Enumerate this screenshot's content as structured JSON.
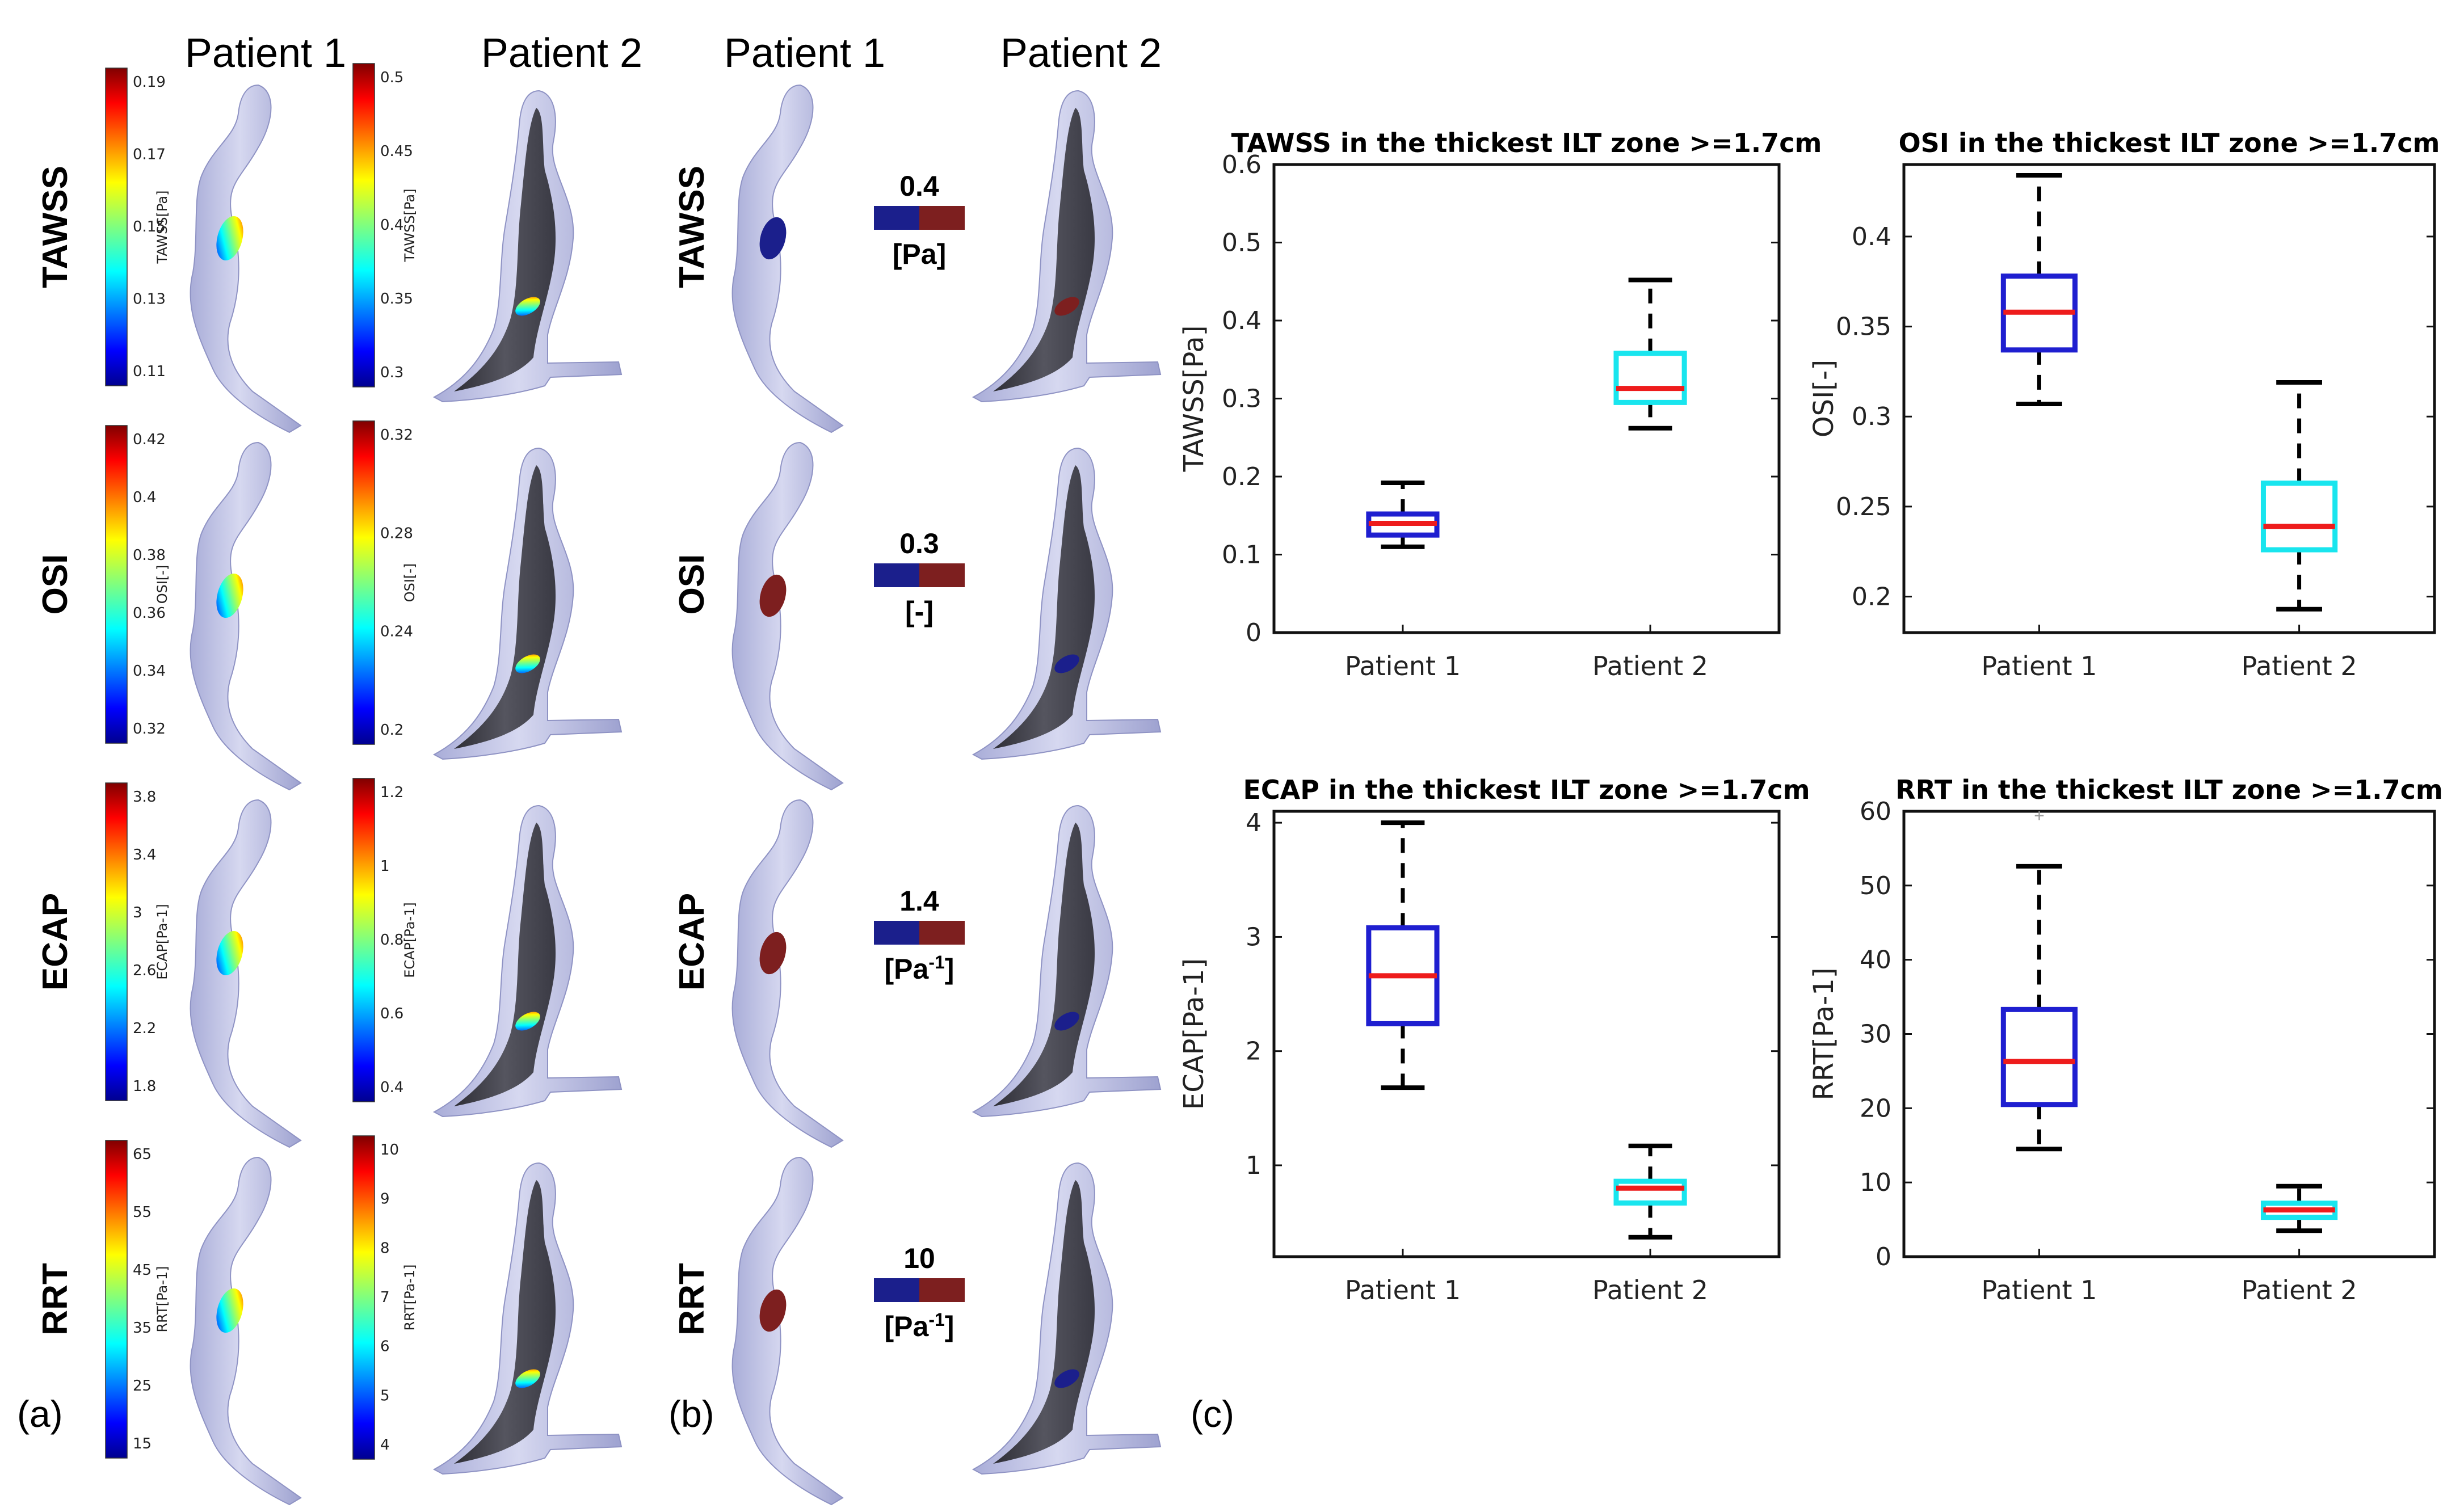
{
  "colors": {
    "vessel": "#c3c6e6",
    "vessel_edge": "#8f93c4",
    "vessel_dark": "#4a4a55",
    "bin_low": "#1b1f8c",
    "bin_high": "#7d1f1f",
    "box_p1": "#1f1fd0",
    "box_p2": "#19e5ee",
    "median": "#ee1c1c",
    "text": "#000000"
  },
  "panel_labels": {
    "a": "(a)",
    "b": "(b)",
    "c": "(c)"
  },
  "panel_a": {
    "col_headers": [
      "Patient 1",
      "Patient 2"
    ],
    "rows": [
      {
        "name": "TAWSS",
        "p1": {
          "axis_label": "TAWSS[Pa]",
          "ticks": [
            "0.19",
            "0.17",
            "0.15",
            "0.13",
            "0.11"
          ]
        },
        "p2": {
          "axis_label": "TAWSS[Pa]",
          "ticks": [
            "0.5",
            "0.45",
            "0.4",
            "0.35",
            "0.3"
          ]
        }
      },
      {
        "name": "OSI",
        "p1": {
          "axis_label": "OSI[-]",
          "ticks": [
            "0.42",
            "0.4",
            "0.38",
            "0.36",
            "0.34",
            "0.32"
          ]
        },
        "p2": {
          "axis_label": "OSI[-]",
          "ticks": [
            "0.32",
            "0.28",
            "0.24",
            "0.2"
          ]
        }
      },
      {
        "name": "ECAP",
        "p1": {
          "axis_label": "ECAP[Pa-1]",
          "ticks": [
            "3.8",
            "3.4",
            "3",
            "2.6",
            "2.2",
            "1.8"
          ]
        },
        "p2": {
          "axis_label": "ECAP[Pa-1]",
          "ticks": [
            "1.2",
            "1",
            "0.8",
            "0.6",
            "0.4"
          ]
        }
      },
      {
        "name": "RRT",
        "p1": {
          "axis_label": "RRT[Pa-1]",
          "ticks": [
            "65",
            "55",
            "45",
            "35",
            "25",
            "15"
          ]
        },
        "p2": {
          "axis_label": "RRT[Pa-1]",
          "ticks": [
            "10",
            "9",
            "8",
            "7",
            "6",
            "5",
            "4"
          ]
        }
      }
    ]
  },
  "panel_b": {
    "col_headers": [
      "Patient 1",
      "Patient 2"
    ],
    "rows": [
      {
        "name": "TAWSS",
        "threshold": "0.4",
        "unit_base": "[Pa]",
        "unit_sup": ""
      },
      {
        "name": "OSI",
        "threshold": "0.3",
        "unit_base": "[-]",
        "unit_sup": ""
      },
      {
        "name": "ECAP",
        "threshold": "1.4",
        "unit_base": "[Pa",
        "unit_sup": "-1",
        "unit_close": "]"
      },
      {
        "name": "RRT",
        "threshold": "10",
        "unit_base": "[Pa",
        "unit_sup": "-1",
        "unit_close": "]"
      }
    ]
  },
  "chart_data": [
    {
      "type": "box",
      "title": "TAWSS in the thickest ILT zone >=1.7cm",
      "xlabel": "",
      "ylabel": "TAWSS[Pa]",
      "categories": [
        "Patient 1",
        "Patient 2"
      ],
      "ylim": [
        0,
        0.6
      ],
      "yticks": [
        0,
        0.1,
        0.2,
        0.3,
        0.4,
        0.5,
        0.6
      ],
      "series": [
        {
          "name": "Patient 1",
          "min": 0.11,
          "q1": 0.125,
          "median": 0.14,
          "q3": 0.152,
          "max": 0.192
        },
        {
          "name": "Patient 2",
          "min": 0.262,
          "q1": 0.295,
          "median": 0.313,
          "q3": 0.358,
          "max": 0.452
        }
      ]
    },
    {
      "type": "box",
      "title": "OSI in the thickest ILT zone >=1.7cm",
      "xlabel": "",
      "ylabel": "OSI[-]",
      "categories": [
        "Patient 1",
        "Patient 2"
      ],
      "ylim": [
        0.18,
        0.44
      ],
      "yticks": [
        0.2,
        0.25,
        0.3,
        0.35,
        0.4
      ],
      "series": [
        {
          "name": "Patient 1",
          "min": 0.307,
          "q1": 0.337,
          "median": 0.358,
          "q3": 0.378,
          "max": 0.434
        },
        {
          "name": "Patient 2",
          "min": 0.193,
          "q1": 0.226,
          "median": 0.239,
          "q3": 0.263,
          "max": 0.319
        }
      ]
    },
    {
      "type": "box",
      "title": "ECAP in the thickest ILT zone >=1.7cm",
      "xlabel": "",
      "ylabel": "ECAP[Pa-1]",
      "categories": [
        "Patient 1",
        "Patient 2"
      ],
      "ylim": [
        0.2,
        4.1
      ],
      "yticks": [
        1,
        2,
        3,
        4
      ],
      "series": [
        {
          "name": "Patient 1",
          "min": 1.68,
          "q1": 2.24,
          "median": 2.66,
          "q3": 3.08,
          "max": 4.0
        },
        {
          "name": "Patient 2",
          "min": 0.37,
          "q1": 0.67,
          "median": 0.8,
          "q3": 0.86,
          "max": 1.17
        }
      ]
    },
    {
      "type": "box",
      "title": "RRT in the thickest ILT zone >=1.7cm",
      "xlabel": "",
      "ylabel": "RRT[Pa-1]",
      "categories": [
        "Patient 1",
        "Patient 2"
      ],
      "ylim": [
        0,
        60
      ],
      "yticks": [
        0,
        10,
        20,
        30,
        40,
        50,
        60
      ],
      "series": [
        {
          "name": "Patient 1",
          "min": 14.5,
          "q1": 20.5,
          "median": 26.3,
          "q3": 33.3,
          "max": 52.6,
          "outliers": [
            59.5
          ]
        },
        {
          "name": "Patient 2",
          "min": 3.5,
          "q1": 5.3,
          "median": 6.3,
          "q3": 7.2,
          "max": 9.5
        }
      ]
    }
  ]
}
